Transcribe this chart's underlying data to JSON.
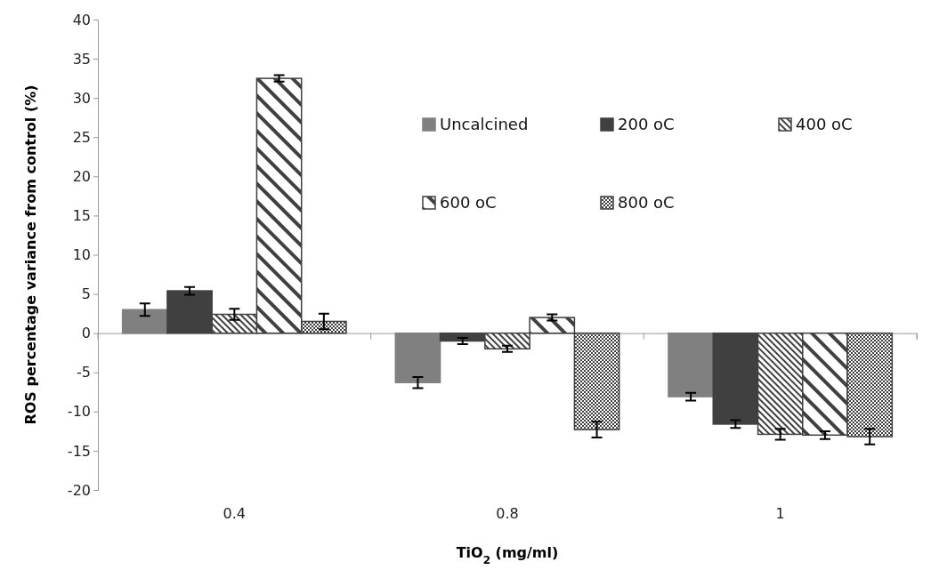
{
  "chart_data": {
    "type": "bar",
    "xlabel": "TiO$_{2}$ (mg/ml)",
    "ylabel": "ROS percentage variance from control (%)",
    "categories": [
      "0.4",
      "0.8",
      "1"
    ],
    "series": [
      {
        "name": "Uncalcined",
        "color": "#808080",
        "values": [
          3.0,
          -6.3,
          -8.1
        ],
        "errors": [
          0.8,
          0.7,
          0.5
        ]
      },
      {
        "name": "200 oC",
        "color": "#404040",
        "values": [
          5.4,
          -1.0,
          -11.6
        ],
        "errors": [
          0.5,
          0.4,
          0.5
        ]
      },
      {
        "name": "400 oC",
        "color": "#404040",
        "values": [
          2.4,
          -2.0,
          -12.9
        ],
        "errors": [
          0.7,
          0.4,
          0.7
        ]
      },
      {
        "name": "600 oC",
        "color": "#404040",
        "values": [
          32.5,
          2.0,
          -13.0
        ],
        "errors": [
          0.4,
          0.4,
          0.5
        ]
      },
      {
        "name": "800 oC",
        "color": "#404040",
        "values": [
          1.5,
          -12.3,
          -13.2
        ],
        "errors": [
          1.0,
          1.0,
          1.0
        ]
      }
    ],
    "ylim": [
      -20,
      40
    ],
    "yticks": [
      -20,
      -15,
      -10,
      -5,
      0,
      5,
      10,
      15,
      20,
      25,
      30,
      35,
      40
    ],
    "grid": false,
    "legend": "top right"
  }
}
